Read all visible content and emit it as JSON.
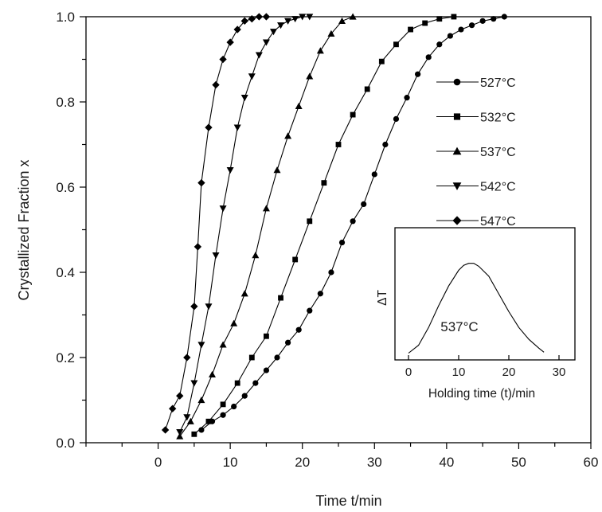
{
  "chart_data": {
    "type": "line",
    "title": "",
    "xlabel": "Time t/min",
    "ylabel": "Crystallized Fraction x",
    "xlim": [
      -10,
      60
    ],
    "ylim": [
      0,
      1
    ],
    "xticks": [
      0,
      10,
      20,
      30,
      40,
      50,
      60
    ],
    "yticks": [
      0.0,
      0.2,
      0.4,
      0.6,
      0.8,
      1.0
    ],
    "xtick_labels": [
      "0",
      "10",
      "20",
      "30",
      "40",
      "50",
      "60"
    ],
    "ytick_labels": [
      "0.0",
      "0.2",
      "0.4",
      "0.6",
      "0.8",
      "1.0"
    ],
    "grid": false,
    "legend_position": "right",
    "series": [
      {
        "name": "527°C",
        "marker": "circle",
        "x": [
          6.0,
          7.5,
          9.0,
          10.5,
          12.0,
          13.5,
          15.0,
          16.5,
          18.0,
          19.5,
          21.0,
          22.5,
          24.0,
          25.5,
          27.0,
          28.5,
          30.0,
          31.5,
          33.0,
          34.5,
          36.0,
          37.5,
          39.0,
          40.5,
          42.0,
          43.5,
          45.0,
          46.5,
          48.0
        ],
        "y": [
          0.03,
          0.05,
          0.065,
          0.085,
          0.11,
          0.14,
          0.17,
          0.2,
          0.235,
          0.265,
          0.31,
          0.35,
          0.4,
          0.47,
          0.52,
          0.56,
          0.63,
          0.7,
          0.76,
          0.81,
          0.865,
          0.905,
          0.935,
          0.955,
          0.97,
          0.98,
          0.99,
          0.995,
          1.0
        ]
      },
      {
        "name": "532°C",
        "marker": "square",
        "x": [
          5.0,
          7.0,
          9.0,
          11.0,
          13.0,
          15.0,
          17.0,
          19.0,
          21.0,
          23.0,
          25.0,
          27.0,
          29.0,
          31.0,
          33.0,
          35.0,
          37.0,
          39.0,
          41.0
        ],
        "y": [
          0.02,
          0.05,
          0.09,
          0.14,
          0.2,
          0.25,
          0.34,
          0.43,
          0.52,
          0.61,
          0.7,
          0.77,
          0.83,
          0.895,
          0.935,
          0.97,
          0.985,
          0.995,
          1.0
        ]
      },
      {
        "name": "537°C",
        "marker": "triangle-up",
        "x": [
          3.0,
          4.5,
          6.0,
          7.5,
          9.0,
          10.5,
          12.0,
          13.5,
          15.0,
          16.5,
          18.0,
          19.5,
          21.0,
          22.5,
          24.0,
          25.5,
          27.0
        ],
        "y": [
          0.015,
          0.05,
          0.1,
          0.16,
          0.23,
          0.28,
          0.35,
          0.44,
          0.55,
          0.64,
          0.72,
          0.79,
          0.86,
          0.92,
          0.96,
          0.99,
          1.0
        ]
      },
      {
        "name": "542°C",
        "marker": "triangle-down",
        "x": [
          3.0,
          4.0,
          5.0,
          6.0,
          7.0,
          8.0,
          9.0,
          10.0,
          11.0,
          12.0,
          13.0,
          14.0,
          15.0,
          16.0,
          17.0,
          18.0,
          19.0,
          20.0,
          21.0
        ],
        "y": [
          0.025,
          0.06,
          0.14,
          0.23,
          0.32,
          0.44,
          0.55,
          0.64,
          0.74,
          0.81,
          0.86,
          0.91,
          0.94,
          0.965,
          0.98,
          0.99,
          0.995,
          1.0,
          1.0
        ]
      },
      {
        "name": "547°C",
        "marker": "diamond",
        "x": [
          1.0,
          2.0,
          3.0,
          4.0,
          5.0,
          5.5,
          6.0,
          7.0,
          8.0,
          9.0,
          10.0,
          11.0,
          12.0,
          13.0,
          14.0,
          15.0
        ],
        "y": [
          0.03,
          0.08,
          0.11,
          0.2,
          0.32,
          0.46,
          0.61,
          0.74,
          0.84,
          0.9,
          0.94,
          0.97,
          0.99,
          0.995,
          1.0,
          1.0
        ]
      }
    ],
    "inset": {
      "type": "line",
      "xlabel": "Holding time (t)/min",
      "ylabel": "ΔT",
      "annotation": "537°C",
      "xlim": [
        0,
        30
      ],
      "xticks": [
        0,
        10,
        20,
        30
      ],
      "xtick_labels": [
        "0",
        "10",
        "20",
        "30"
      ],
      "ylim": [
        0,
        1
      ],
      "curve": {
        "x": [
          0,
          2,
          4,
          6,
          8,
          10,
          11,
          12,
          13,
          14,
          16,
          18,
          20,
          22,
          24,
          26,
          27
        ],
        "y": [
          0.02,
          0.1,
          0.28,
          0.5,
          0.7,
          0.86,
          0.91,
          0.93,
          0.93,
          0.9,
          0.8,
          0.62,
          0.44,
          0.28,
          0.16,
          0.07,
          0.03
        ]
      }
    }
  }
}
